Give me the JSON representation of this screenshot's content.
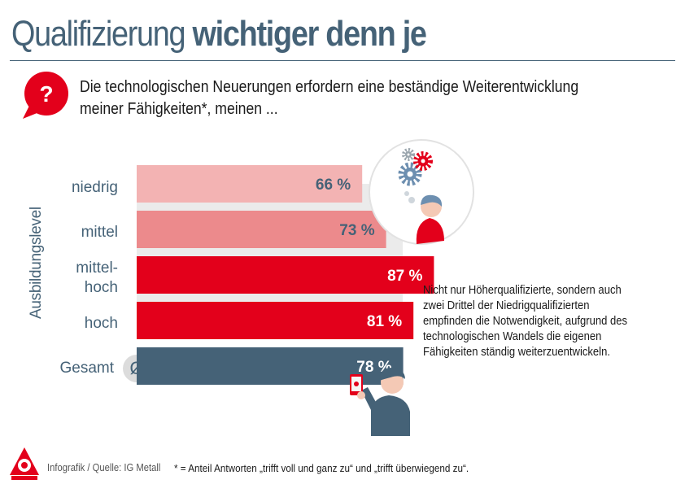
{
  "header": {
    "title_light": "Qualifizierung",
    "title_bold": "wichtiger denn je"
  },
  "question": {
    "icon": "question-bubble-icon",
    "line1": "Die technologischen Neuerungen erfordern eine beständige Weiterentwicklung",
    "line2": "meiner Fähigkeiten*, meinen ..."
  },
  "chart_data": {
    "type": "bar",
    "orientation": "horizontal",
    "ylabel": "Ausbildungslevel",
    "categories": [
      "niedrig",
      "mittel",
      "mittel-hoch",
      "hoch",
      "Gesamt"
    ],
    "category_lines": [
      [
        "niedrig"
      ],
      [
        "mittel"
      ],
      [
        "mittel-",
        "hoch"
      ],
      [
        "hoch"
      ],
      [
        "Gesamt"
      ]
    ],
    "values": [
      66,
      73,
      87,
      81,
      78
    ],
    "value_labels": [
      "66 %",
      "73 %",
      "87 %",
      "81 %",
      "78 %"
    ],
    "unit": "%",
    "xlim": [
      0,
      100
    ],
    "average_marker": "Ø",
    "colors": [
      "#f3b3b3",
      "#ec8a8c",
      "#e3001b",
      "#e3001b",
      "#456277"
    ],
    "label_colors": [
      "#456277",
      "#456277",
      "#ffffff",
      "#ffffff",
      "#ffffff"
    ],
    "backdrop_color": "#ebebeb"
  },
  "note": {
    "lines": [
      "Nicht nur Höherqualifizierte, sondern auch",
      "zwei Drittel der Niedrigqualifizierten",
      "empfinden die Notwendigkeit, aufgrund des",
      "technologischen Wandels die eigenen",
      "Fähigkeiten ständig weiterzuentwickeln."
    ]
  },
  "footer": {
    "source": "Infografik / Quelle:  IG Metall",
    "footnote": "* = Anteil Antworten „trifft voll und ganz zu“ und „trifft überwiegend zu“."
  },
  "colors": {
    "brand_blue": "#456277",
    "brand_red": "#e3001b"
  }
}
